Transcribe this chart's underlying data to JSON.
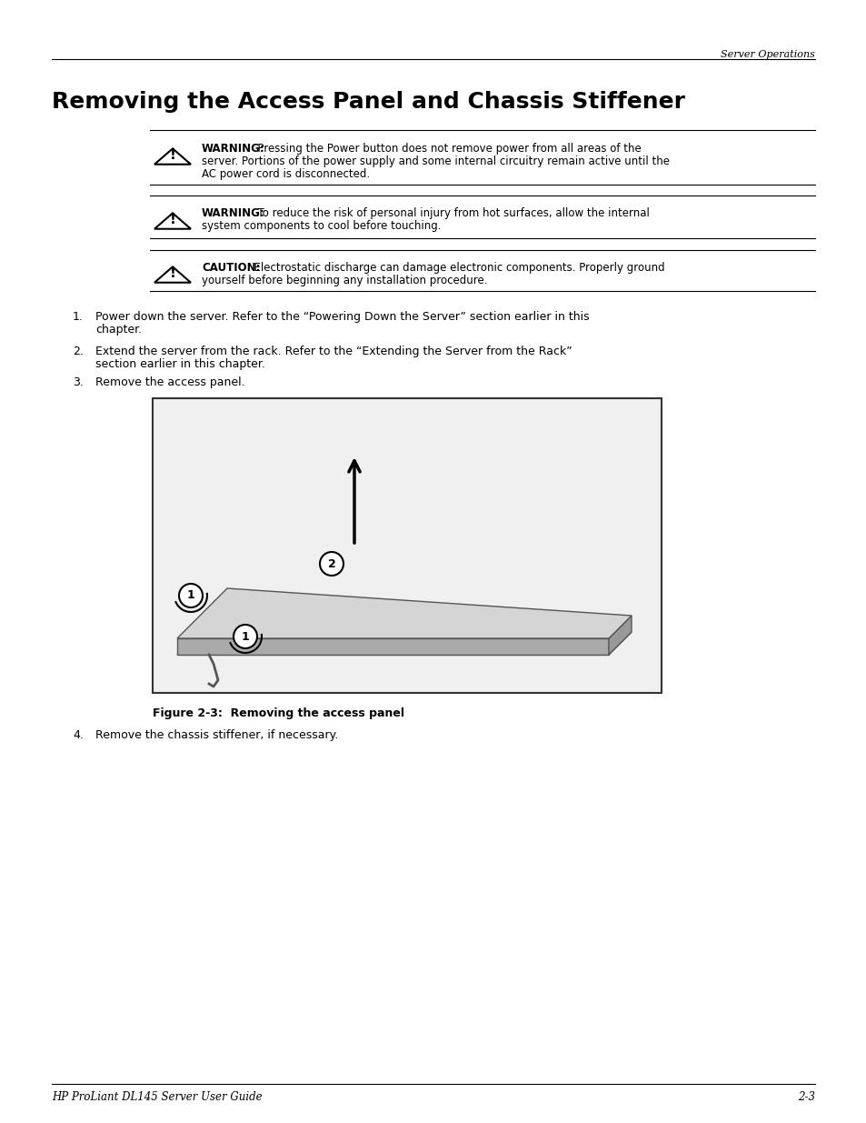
{
  "bg_color": "#ffffff",
  "header_italic": "Server Operations",
  "title": "Removing the Access Panel and Chassis Stiffener",
  "footer_left": "HP ProLiant DL145 Server User Guide",
  "footer_right": "2-3",
  "warning1_line1_bold": "WARNING:",
  "warning1_line1_rest": "  Pressing the Power button does not remove power from all areas of the",
  "warning1_line2": "server. Portions of the power supply and some internal circuitry remain active until the",
  "warning1_line3": "AC power cord is disconnected.",
  "warning2_line1_bold": "WARNING:",
  "warning2_line1_rest": "  To reduce the risk of personal injury from hot surfaces, allow the internal",
  "warning2_line2": "system components to cool before touching.",
  "caution_line1_bold": "CAUTION:",
  "caution_line1_rest": "  Electrostatic discharge can damage electronic components. Properly ground",
  "caution_line2": "yourself before beginning any installation procedure.",
  "step1_line1": "Power down the server. Refer to the “Powering Down the Server” section earlier in this",
  "step1_line2": "chapter.",
  "step2_line1": "Extend the server from the rack. Refer to the “Extending the Server from the Rack”",
  "step2_line2": "section earlier in this chapter.",
  "step3": "Remove the access panel.",
  "figure_caption": "Figure 2-3:  Removing the access panel",
  "step4": "Remove the chassis stiffener, if necessary."
}
